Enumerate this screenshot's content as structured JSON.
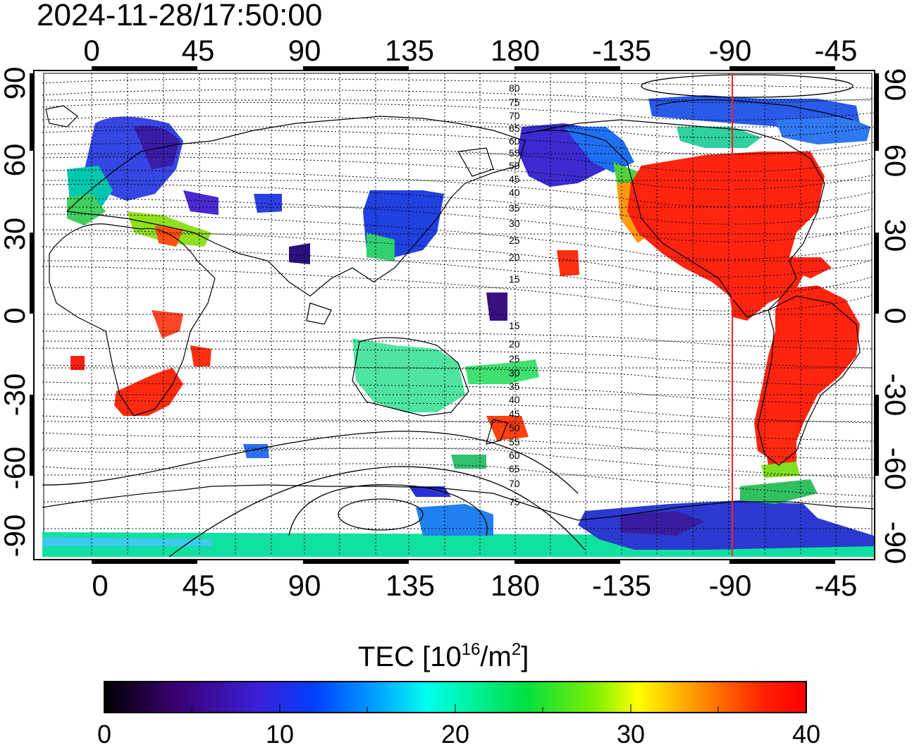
{
  "timestamp": "2024-11-28/17:50:00",
  "top_lon_ticks": [
    "0",
    "45",
    "90",
    "135",
    "180",
    "-135",
    "-90",
    "-45"
  ],
  "bottom_lon_ticks": [
    "0",
    "45",
    "90",
    "135",
    "180",
    "-135",
    "-90",
    "-45"
  ],
  "left_lat_ticks": [
    "90",
    "60",
    "30",
    "0",
    "-30",
    "-60",
    "-90"
  ],
  "right_lat_ticks": [
    "90",
    "60",
    "30",
    "0",
    "-30",
    "-60",
    "-90"
  ],
  "maglat_labels_north": [
    "80",
    "75",
    "70",
    "65",
    "60",
    "55",
    "50",
    "45",
    "40",
    "35",
    "30",
    "25",
    "20",
    "15"
  ],
  "maglat_labels_south": [
    "15",
    "20",
    "25",
    "30",
    "35",
    "40",
    "45",
    "50",
    "55",
    "60",
    "65",
    "70",
    "75"
  ],
  "colorbar": {
    "title_main": "TEC  [10",
    "title_sup1": "16",
    "title_mid": "/m",
    "title_sup2": "2",
    "title_end": "]",
    "tick_labels": [
      "0",
      "10",
      "20",
      "30",
      "40"
    ],
    "min": 0,
    "max": 40
  },
  "marker_longitude": -90,
  "colors": {
    "marker_line": "#ff2020",
    "grid": "#000000"
  }
}
